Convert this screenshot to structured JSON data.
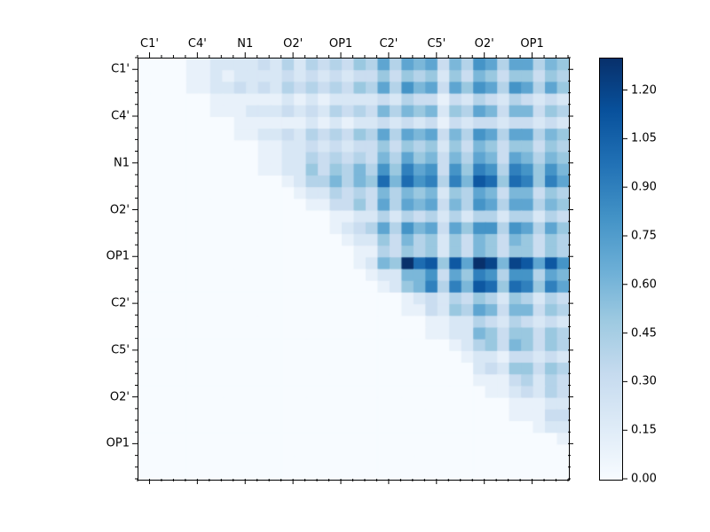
{
  "figure": {
    "background": "#ffffff",
    "text_color": "#000000"
  },
  "chart_data": {
    "type": "heatmap",
    "title": "",
    "description": "Upper-triangular pairwise heatmap, Blues colormap, x axis labels on top, y axis labels on left",
    "group_labels_x": [
      "C1'",
      "C4'",
      "N1",
      "O2'",
      "OP1",
      "C2'",
      "C5'",
      "O2'",
      "OP1"
    ],
    "group_labels_y": [
      "C1'",
      "C4'",
      "N1",
      "O2'",
      "OP1",
      "C2'",
      "C5'",
      "O2'",
      "OP1"
    ],
    "cells_per_group": 4,
    "n": 36,
    "vmin": 0.0,
    "vmax": 1.3,
    "value_encoding": "rows are strings of hex digits; cell value = digit * 0.1 (0..d -> 0.0..1.3); lower triangle is 0",
    "rows": [
      "000011222232424343547476736487477465",
      "000011212222323232335354525365355354",
      "000011223232434343547486737587487475",
      "000000111111212122223243313243243232",
      "000000111222323243436465625476366354",
      "000000001111112121223232313233233232",
      "000000001122324343547476736487477465",
      "000000000011223232335354525365355354",
      "000000000011224343436475636476376465",
      "000000000011225354648597838598498586",
      "00000000000012446465a6a89496ba5a9597",
      "000000000000012243436465625476366354",
      "000000000000001133537476736487477465",
      "000000000000000011224243424244244243",
      "000000000000000012347486737588487475",
      "000000000000000001225364525365365354",
      "000000000000000000114354525365355354",
      "0000000000000000001265dab5b7dc6cb7b8",
      "000000000000000000012266837598488476",
      "0000000000000000000012569496ba5a9597",
      "000000000000000000000012324354254243",
      "000000000000000000000011325476366354",
      "000000000000000000000000112243243232",
      "000000000000000000000000112265355354",
      "000000000000000000000000001245365354",
      "000000000000000000000000000122133232",
      "000000000000000000000000000023255354",
      "000000000000000000000000000011134243",
      "000000000000000000000000000001123243",
      "000000000000000000000000000000011122",
      "000000000000000000000000000000011133",
      "000000000000000000000000000000000122",
      "000000000000000000000000000000000001",
      "000000000000000000000000000000000000",
      "000000000000000000000000000000000000",
      "000000000000000000000000000000000000"
    ],
    "colormap": {
      "name": "Blues",
      "stops": [
        "#f7fbff",
        "#deebf7",
        "#c6dbef",
        "#9ecae1",
        "#6baed6",
        "#4292c6",
        "#2171b5",
        "#08519c",
        "#08306b"
      ]
    },
    "colorbar": {
      "ticks": [
        "0.00",
        "0.15",
        "0.30",
        "0.45",
        "0.60",
        "0.75",
        "0.90",
        "1.05",
        "1.20"
      ],
      "tick_values": [
        0,
        0.15,
        0.3,
        0.45,
        0.6,
        0.75,
        0.9,
        1.05,
        1.2
      ]
    },
    "x_axis_side": "top",
    "y_axis_side": "left"
  }
}
